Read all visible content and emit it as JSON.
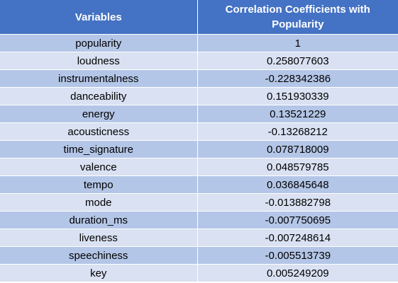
{
  "header": {
    "col1": "Variables",
    "col2": "Correlation Coefficients with Popularity"
  },
  "rows": [
    {
      "variable": "popularity",
      "coefficient": "1"
    },
    {
      "variable": "loudness",
      "coefficient": "0.258077603"
    },
    {
      "variable": "instrumentalness",
      "coefficient": "-0.228342386"
    },
    {
      "variable": "danceability",
      "coefficient": "0.151930339"
    },
    {
      "variable": "energy",
      "coefficient": "0.13521229"
    },
    {
      "variable": "acousticness",
      "coefficient": "-0.13268212"
    },
    {
      "variable": "time_signature",
      "coefficient": "0.078718009"
    },
    {
      "variable": "valence",
      "coefficient": "0.048579785"
    },
    {
      "variable": "tempo",
      "coefficient": "0.036845648"
    },
    {
      "variable": "mode",
      "coefficient": "-0.013882798"
    },
    {
      "variable": "duration_ms",
      "coefficient": "-0.007750695"
    },
    {
      "variable": "liveness",
      "coefficient": "-0.007248614"
    },
    {
      "variable": "speechiness",
      "coefficient": "-0.005513739"
    },
    {
      "variable": "key",
      "coefficient": "0.005249209"
    }
  ],
  "colors": {
    "header_bg": "#4472c4",
    "row_dark": "#b4c6e7",
    "row_light": "#d9e1f2"
  }
}
